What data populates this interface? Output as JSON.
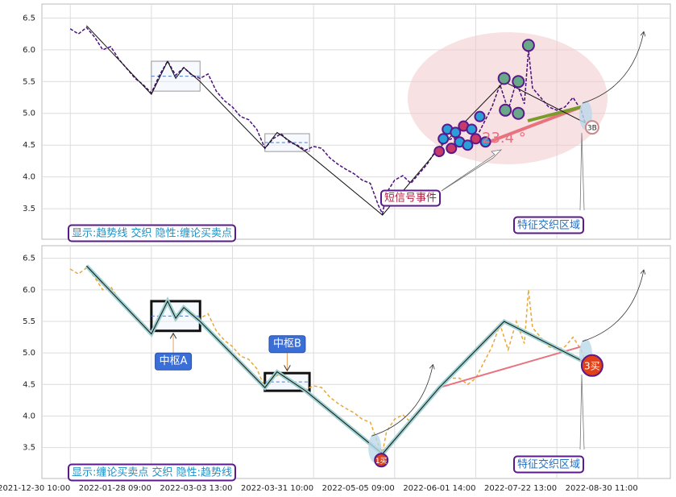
{
  "chart_data": [
    {
      "type": "line",
      "x": [
        0,
        2,
        4,
        6,
        8,
        10,
        12,
        14,
        16,
        18,
        20,
        22,
        24,
        26,
        28,
        30,
        32,
        34,
        36,
        38,
        40,
        42,
        44,
        46,
        48,
        50,
        52,
        54,
        56,
        58,
        60,
        62,
        64,
        66,
        68,
        70,
        72,
        74,
        76,
        77,
        78,
        80,
        82,
        84,
        86,
        88,
        90,
        92,
        94,
        96,
        98,
        100,
        102,
        104,
        106,
        108,
        110,
        112,
        113,
        114,
        116,
        118,
        120,
        122,
        124,
        126,
        127
      ],
      "values": [
        6.33,
        6.25,
        6.35,
        6.2,
        6.0,
        6.05,
        5.85,
        5.7,
        5.55,
        5.45,
        5.32,
        5.6,
        5.82,
        5.6,
        5.72,
        5.6,
        5.55,
        5.62,
        5.35,
        5.2,
        5.1,
        4.95,
        4.9,
        4.75,
        4.45,
        4.6,
        4.68,
        4.55,
        4.5,
        4.42,
        4.48,
        4.45,
        4.3,
        4.2,
        4.12,
        4.05,
        3.95,
        3.9,
        3.55,
        3.42,
        3.75,
        3.95,
        4.02,
        3.9,
        4.05,
        4.2,
        4.4,
        4.55,
        4.6,
        4.6,
        4.5,
        4.6,
        4.85,
        5.1,
        5.45,
        5.05,
        5.5,
        5.15,
        6.0,
        5.4,
        5.25,
        5.1,
        5.05,
        5.1,
        5.25,
        5.05,
        4.85
      ],
      "color": "#4b0f7a",
      "trend": {
        "x": [
          4,
          20,
          24,
          26,
          28,
          32,
          48,
          51,
          58,
          77,
          91,
          107,
          127
        ],
        "values": [
          6.38,
          5.3,
          5.82,
          5.55,
          5.72,
          5.5,
          4.45,
          4.7,
          4.4,
          3.4,
          4.45,
          5.5,
          4.85
        ]
      },
      "pivots": [
        {
          "x": [
            20,
            32
          ],
          "y": [
            5.35,
            5.82
          ]
        },
        {
          "x": [
            48,
            59
          ],
          "y": [
            4.4,
            4.68
          ]
        }
      ],
      "angle_line": {
        "x": [
          102,
          126
        ],
        "values": [
          4.52,
          5.1
        ]
      },
      "signals": {
        "x": [
          91,
          92,
          93,
          94,
          95,
          96,
          97,
          98,
          99,
          100,
          101,
          102.4,
          107,
          110.5,
          107.3,
          110.5,
          113
        ],
        "values": [
          4.4,
          4.6,
          4.75,
          4.45,
          4.7,
          4.55,
          4.8,
          4.5,
          4.75,
          4.6,
          4.95,
          4.55,
          5.55,
          5.5,
          5.05,
          5.0,
          6.07
        ]
      },
      "points": [
        {
          "label": "3B",
          "x": 128.7,
          "value": 4.78
        }
      ],
      "annotations": [
        "显示:趋势线 交织 隐性:缠论买卖点",
        "短信号事件",
        "特征交织区域",
        "23.4 °"
      ],
      "xlim": [
        -7,
        148
      ],
      "ylim": [
        3.02,
        6.72
      ],
      "xticks": [
        0,
        20,
        40,
        60,
        80,
        100,
        120,
        140
      ],
      "yticks": [
        3.5,
        {
          "value": 4,
          "label": "4.0"
        },
        4.5,
        {
          "value": 5,
          "label": "5.0"
        },
        5.5,
        {
          "value": 6,
          "label": "6.0"
        },
        6.5
      ],
      "grid": true
    },
    {
      "type": "line",
      "x": [
        0,
        2,
        4,
        6,
        8,
        10,
        12,
        14,
        16,
        18,
        20,
        22,
        24,
        26,
        28,
        30,
        32,
        34,
        36,
        38,
        40,
        42,
        44,
        46,
        48,
        50,
        52,
        54,
        56,
        58,
        60,
        62,
        64,
        66,
        68,
        70,
        72,
        74,
        76,
        77,
        78,
        80,
        82,
        84,
        86,
        88,
        90,
        92,
        94,
        96,
        98,
        100,
        102,
        104,
        106,
        108,
        110,
        112,
        113,
        114,
        116,
        118,
        120,
        122,
        124,
        126,
        127
      ],
      "values": [
        6.33,
        6.25,
        6.35,
        6.2,
        6.0,
        6.05,
        5.85,
        5.7,
        5.55,
        5.45,
        5.32,
        5.6,
        5.82,
        5.6,
        5.72,
        5.6,
        5.55,
        5.62,
        5.35,
        5.2,
        5.1,
        4.95,
        4.9,
        4.75,
        4.45,
        4.6,
        4.68,
        4.55,
        4.5,
        4.42,
        4.48,
        4.45,
        4.3,
        4.2,
        4.12,
        4.05,
        3.95,
        3.9,
        3.55,
        3.42,
        3.75,
        3.95,
        4.02,
        3.9,
        4.05,
        4.2,
        4.4,
        4.55,
        4.6,
        4.6,
        4.5,
        4.6,
        4.85,
        5.1,
        5.45,
        5.05,
        5.5,
        5.15,
        6.0,
        5.4,
        5.25,
        5.1,
        5.05,
        5.1,
        5.25,
        5.05,
        4.85
      ],
      "color": "#e8a735",
      "trend": {
        "x": [
          4,
          20,
          24,
          26,
          28,
          32,
          48,
          51,
          58,
          77,
          91,
          107,
          127
        ],
        "values": [
          6.38,
          5.3,
          5.82,
          5.55,
          5.72,
          5.5,
          4.45,
          4.7,
          4.4,
          3.4,
          4.45,
          5.5,
          4.85
        ]
      },
      "pivots": [
        {
          "label": "中枢A",
          "x": [
            20,
            32
          ],
          "y": [
            5.35,
            5.82
          ]
        },
        {
          "label": "中枢B",
          "x": [
            48,
            59
          ],
          "y": [
            4.4,
            4.68
          ]
        }
      ],
      "angle_line": {
        "x": [
          91,
          126
        ],
        "values": [
          4.45,
          5.1
        ]
      },
      "points": [
        {
          "label": "1买",
          "x": 76.7,
          "value": 3.3
        },
        {
          "label": "3买",
          "x": 128.7,
          "value": 4.8
        }
      ],
      "annotations": [
        "显示:缠论买卖点 交织 隐性:趋势线",
        "特征交织区域"
      ],
      "xlim": [
        -7,
        148
      ],
      "ylim": [
        3.01,
        6.7
      ],
      "xticks": [
        {
          "value": 0,
          "label": "2021-12-30 10:00"
        },
        {
          "value": 20,
          "label": "2022-01-28 09:00"
        },
        {
          "value": 40,
          "label": "2022-03-03 13:00"
        },
        {
          "value": 60,
          "label": "2022-03-31 10:00"
        },
        {
          "value": 80,
          "label": "2022-05-05 09:00"
        },
        {
          "value": 100,
          "label": "2022-06-01 14:00"
        },
        {
          "value": 120,
          "label": "2022-07-22 13:00"
        },
        {
          "value": 140,
          "label": "2022-08-30 11:00"
        }
      ],
      "yticks": [
        3.5,
        {
          "value": 4,
          "label": "4.0"
        },
        4.5,
        {
          "value": 5,
          "label": "5.0"
        },
        5.5,
        {
          "value": 6,
          "label": "6.0"
        },
        6.5
      ],
      "grid": true
    }
  ]
}
